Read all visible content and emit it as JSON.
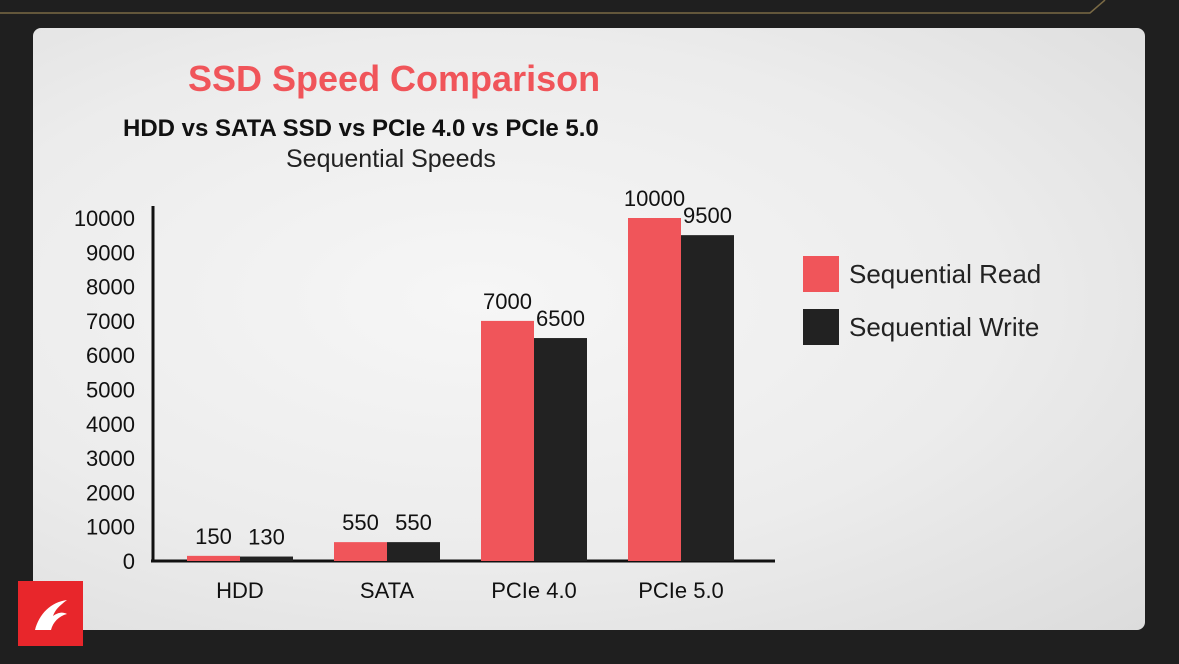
{
  "chart_data": {
    "type": "bar",
    "title": "SSD Speed Comparison",
    "subtitle": "HDD vs SATA SSD vs PCIe 4.0 vs PCIe 5.0",
    "subtitle2": "Sequential Speeds",
    "categories": [
      "HDD",
      "SATA",
      "PCIe 4.0",
      "PCIe 5.0"
    ],
    "series": [
      {
        "name": "Sequential Read",
        "values": [
          150,
          550,
          7000,
          10000
        ],
        "color": "#f0555a"
      },
      {
        "name": "Sequential Write",
        "values": [
          130,
          550,
          6500,
          9500
        ],
        "color": "#222222"
      }
    ],
    "yticks": [
      0,
      1000,
      2000,
      3000,
      4000,
      5000,
      6000,
      7000,
      8000,
      9000,
      10000
    ],
    "ylim": [
      0,
      10000
    ],
    "grid": false,
    "legend": "right"
  },
  "colors": {
    "accent": "#f0555a",
    "dark": "#222222",
    "logo": "#e8262b"
  },
  "logo": {
    "icon": "dragon-logo-icon"
  }
}
